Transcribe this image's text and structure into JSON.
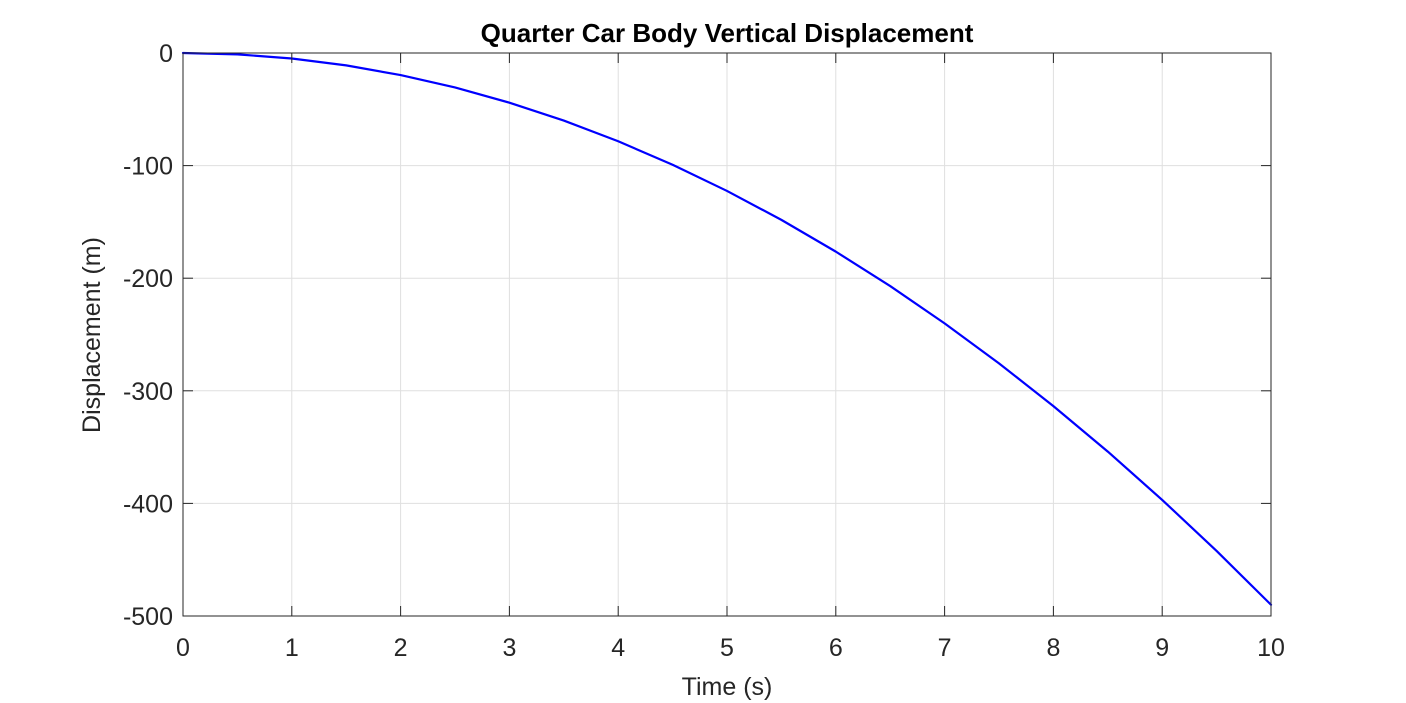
{
  "chart_data": {
    "type": "line",
    "title": "Quarter Car Body Vertical Displacement",
    "xlabel": "Time (s)",
    "ylabel": "Displacement (m)",
    "xlim": [
      0,
      10
    ],
    "ylim": [
      -500,
      0
    ],
    "xticks": [
      0,
      1,
      2,
      3,
      4,
      5,
      6,
      7,
      8,
      9,
      10
    ],
    "yticks": [
      0,
      -100,
      -200,
      -300,
      -400,
      -500
    ],
    "xtick_labels": [
      "0",
      "1",
      "2",
      "3",
      "4",
      "5",
      "6",
      "7",
      "8",
      "9",
      "10"
    ],
    "ytick_labels": [
      "0",
      "-100",
      "-200",
      "-300",
      "-400",
      "-500"
    ],
    "grid": true,
    "box": true,
    "series": [
      {
        "color": "#0000ff",
        "x": [
          0,
          0.5,
          1,
          1.5,
          2,
          2.5,
          3,
          3.5,
          4,
          4.5,
          5,
          5.5,
          6,
          6.5,
          7,
          7.5,
          8,
          8.5,
          9,
          9.5,
          10
        ],
        "y": [
          0,
          -1.2,
          -4.9,
          -11.0,
          -19.6,
          -30.6,
          -44.1,
          -60.0,
          -78.4,
          -99.2,
          -122.5,
          -148.2,
          -176.4,
          -207.0,
          -240.1,
          -275.6,
          -313.6,
          -354.0,
          -396.9,
          -442.2,
          -490.0
        ]
      }
    ]
  }
}
